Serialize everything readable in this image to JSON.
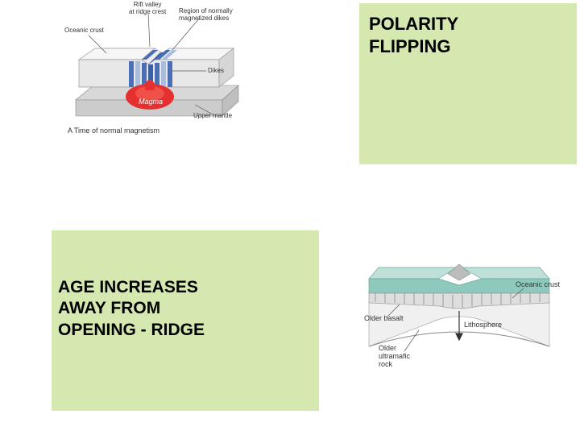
{
  "top_right": {
    "title": "POLARITY\nFLIPPING"
  },
  "bottom_left": {
    "title": "AGE INCREASES\nAWAY FROM\nOPENING - RIDGE"
  },
  "fig1": {
    "labels": {
      "oceanic_crust": "Oceanic crust",
      "rift_valley": "Rift valley\nat ridge crest",
      "region": "Region of normally\nmagnetized dikes",
      "dikes": "Dikes",
      "magma": "Magma",
      "upper_mantle": "Upper mantle",
      "caption": "A  Time of normal magnetism"
    },
    "colors": {
      "crust_top": "#f5f5f5",
      "crust_side": "#e0e0e0",
      "dike_normal": "#4a6fb5",
      "dike_light": "#a8bcdc",
      "mantle": "#d8d8d8",
      "magma": "#e63030",
      "magma_dark": "#b81c1c",
      "line": "#555555"
    }
  },
  "fig2": {
    "labels": {
      "older_basalt": "Older basalt",
      "oceanic_crust": "Oceanic crust",
      "lithosphere": "Lithosphere",
      "older_ultramafic": "Older\nultramafic\nrock"
    },
    "colors": {
      "water": "#8fc9bd",
      "water_top": "#bfe0d8",
      "crust": "#dedede",
      "crust_dark": "#c4c4c4",
      "mantle": "#f0f0f0",
      "line": "#444444",
      "hatch": "#888888"
    }
  }
}
